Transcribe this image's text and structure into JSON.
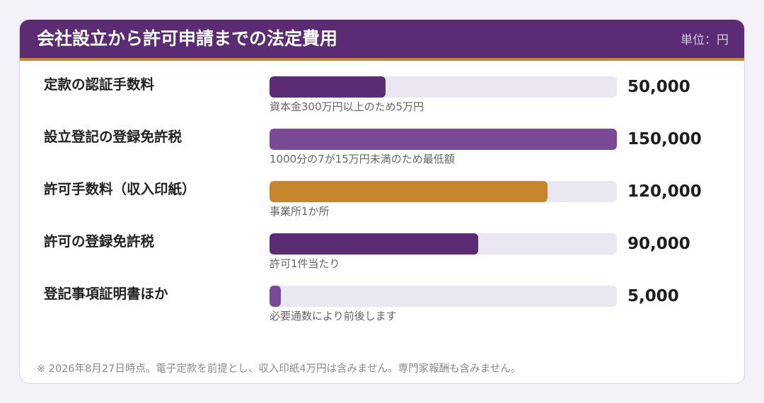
{
  "header": {
    "title": "会社設立から許可申請までの法定費用",
    "unit": "単位：円"
  },
  "colors": {
    "header_bg": "#5b2c74",
    "header_accent": "#c8872b",
    "track": "#ebe7f2"
  },
  "chart_data": {
    "type": "bar",
    "orientation": "horizontal",
    "xlim": [
      0,
      150000
    ],
    "categories": [
      "定款の認証手数料",
      "設立登記の登録免許税",
      "許可手数料（収入印紙）",
      "許可の登録免許税",
      "登記事項証明書ほか"
    ],
    "values": [
      50000,
      150000,
      120000,
      90000,
      5000
    ],
    "value_labels": [
      "50,000",
      "150,000",
      "120,000",
      "90,000",
      "5,000"
    ],
    "notes": [
      "資本金300万円以上のため5万円",
      "1000分の7が15万円未満のため最低額",
      "事業所1か所",
      "許可1件当たり",
      "必要通数により前後します"
    ],
    "bar_colors": [
      "#5b2c74",
      "#7b4a97",
      "#c6862c",
      "#5b2c74",
      "#7b4a97"
    ]
  },
  "footnote": "※ 2026年8月27日時点。電子定款を前提とし、収入印紙4万円は含みません。専門家報酬も含みません。"
}
